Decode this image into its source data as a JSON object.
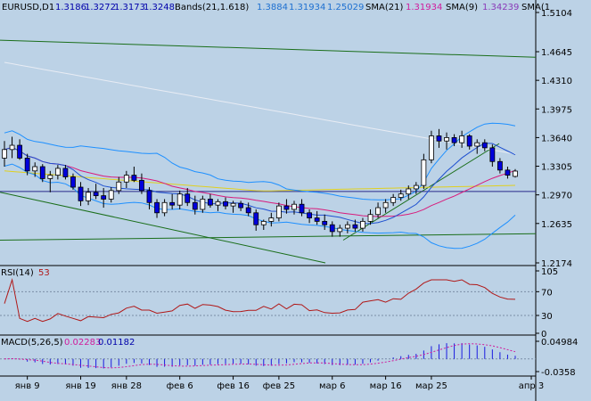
{
  "header": {
    "symbol": "EURUSD,D1",
    "ohlc": [
      "1.3186",
      "1.3272",
      "1.3173",
      "1.3248"
    ],
    "bands_label": "Bands(21,1.618)",
    "bands_values": [
      "1.3884",
      "1.31934",
      "1.25029"
    ],
    "sma21_label": "SMA(21)",
    "sma21_value": "1.31934",
    "sma9_label": "SMA(9)",
    "sma9_value": "1.34239",
    "sma_extra_label": "SMA(1"
  },
  "colors": {
    "background": "#bcd2e6",
    "candle_up": "#ffffff",
    "candle_down": "#0000dd",
    "bands": "#1e90ff",
    "sma21": "#d81b7c",
    "sma9": "#1e50d0",
    "slow_ma": "#e8ecf4",
    "ma_yellow": "#e0d020",
    "trendline": "#1a6e1a",
    "hline": "#2a2a8a",
    "rsi_line": "#b01818",
    "macd_hist": "#1a1ae0",
    "macd_signal": "#d01b9c",
    "ohlc_text": "#0000aa",
    "bands_text": "#1e70d0",
    "sma21_text": "#d01b9c",
    "sma9_text": "#8a3ab8"
  },
  "rsi": {
    "label": "RSI(14)",
    "value": "53"
  },
  "macd": {
    "label": "MACD(5,26,5)",
    "value1": "0.02283",
    "value2": "0.01182"
  },
  "chart_data": {
    "type": "candlestick",
    "symbol": "EURUSD",
    "timeframe": "D1",
    "price_ticks": [
      "1.5104",
      "1.4645",
      "1.4310",
      "1.3975",
      "1.3640",
      "1.3305",
      "1.2970",
      "1.2635",
      "1.2174"
    ],
    "ylim": [
      1.2174,
      1.5104
    ],
    "date_labels": [
      "янв 9",
      "янв 19",
      "янв 28",
      "фев 6",
      "фев 16",
      "фев 25",
      "мар 6",
      "мар 16",
      "мар 25",
      "апр 3"
    ],
    "candles": [
      {
        "o": 1.34,
        "h": 1.36,
        "l": 1.33,
        "c": 1.35
      },
      {
        "o": 1.35,
        "h": 1.365,
        "l": 1.34,
        "c": 1.355
      },
      {
        "o": 1.355,
        "h": 1.362,
        "l": 1.338,
        "c": 1.34
      },
      {
        "o": 1.34,
        "h": 1.345,
        "l": 1.32,
        "c": 1.325
      },
      {
        "o": 1.325,
        "h": 1.335,
        "l": 1.318,
        "c": 1.33
      },
      {
        "o": 1.33,
        "h": 1.333,
        "l": 1.312,
        "c": 1.316
      },
      {
        "o": 1.316,
        "h": 1.325,
        "l": 1.3,
        "c": 1.32
      },
      {
        "o": 1.32,
        "h": 1.332,
        "l": 1.315,
        "c": 1.328
      },
      {
        "o": 1.328,
        "h": 1.332,
        "l": 1.315,
        "c": 1.318
      },
      {
        "o": 1.318,
        "h": 1.322,
        "l": 1.303,
        "c": 1.306
      },
      {
        "o": 1.306,
        "h": 1.312,
        "l": 1.284,
        "c": 1.29
      },
      {
        "o": 1.29,
        "h": 1.305,
        "l": 1.285,
        "c": 1.3
      },
      {
        "o": 1.3,
        "h": 1.31,
        "l": 1.292,
        "c": 1.296
      },
      {
        "o": 1.296,
        "h": 1.305,
        "l": 1.282,
        "c": 1.292
      },
      {
        "o": 1.292,
        "h": 1.306,
        "l": 1.288,
        "c": 1.302
      },
      {
        "o": 1.302,
        "h": 1.318,
        "l": 1.298,
        "c": 1.312
      },
      {
        "o": 1.312,
        "h": 1.325,
        "l": 1.305,
        "c": 1.32
      },
      {
        "o": 1.32,
        "h": 1.33,
        "l": 1.312,
        "c": 1.314
      },
      {
        "o": 1.314,
        "h": 1.322,
        "l": 1.298,
        "c": 1.302
      },
      {
        "o": 1.302,
        "h": 1.306,
        "l": 1.28,
        "c": 1.288
      },
      {
        "o": 1.288,
        "h": 1.292,
        "l": 1.27,
        "c": 1.276
      },
      {
        "o": 1.276,
        "h": 1.292,
        "l": 1.272,
        "c": 1.288
      },
      {
        "o": 1.288,
        "h": 1.298,
        "l": 1.28,
        "c": 1.285
      },
      {
        "o": 1.285,
        "h": 1.302,
        "l": 1.28,
        "c": 1.298
      },
      {
        "o": 1.298,
        "h": 1.305,
        "l": 1.284,
        "c": 1.288
      },
      {
        "o": 1.288,
        "h": 1.296,
        "l": 1.274,
        "c": 1.28
      },
      {
        "o": 1.28,
        "h": 1.296,
        "l": 1.276,
        "c": 1.292
      },
      {
        "o": 1.292,
        "h": 1.298,
        "l": 1.282,
        "c": 1.285
      },
      {
        "o": 1.285,
        "h": 1.292,
        "l": 1.278,
        "c": 1.289
      },
      {
        "o": 1.289,
        "h": 1.294,
        "l": 1.28,
        "c": 1.284
      },
      {
        "o": 1.284,
        "h": 1.29,
        "l": 1.276,
        "c": 1.287
      },
      {
        "o": 1.287,
        "h": 1.29,
        "l": 1.278,
        "c": 1.282
      },
      {
        "o": 1.282,
        "h": 1.288,
        "l": 1.272,
        "c": 1.276
      },
      {
        "o": 1.276,
        "h": 1.28,
        "l": 1.255,
        "c": 1.262
      },
      {
        "o": 1.262,
        "h": 1.268,
        "l": 1.256,
        "c": 1.266
      },
      {
        "o": 1.266,
        "h": 1.276,
        "l": 1.26,
        "c": 1.27
      },
      {
        "o": 1.27,
        "h": 1.288,
        "l": 1.266,
        "c": 1.284
      },
      {
        "o": 1.284,
        "h": 1.292,
        "l": 1.275,
        "c": 1.28
      },
      {
        "o": 1.28,
        "h": 1.29,
        "l": 1.274,
        "c": 1.286
      },
      {
        "o": 1.286,
        "h": 1.292,
        "l": 1.272,
        "c": 1.276
      },
      {
        "o": 1.276,
        "h": 1.28,
        "l": 1.264,
        "c": 1.27
      },
      {
        "o": 1.27,
        "h": 1.278,
        "l": 1.262,
        "c": 1.266
      },
      {
        "o": 1.266,
        "h": 1.274,
        "l": 1.256,
        "c": 1.262
      },
      {
        "o": 1.262,
        "h": 1.266,
        "l": 1.248,
        "c": 1.254
      },
      {
        "o": 1.254,
        "h": 1.262,
        "l": 1.248,
        "c": 1.258
      },
      {
        "o": 1.258,
        "h": 1.266,
        "l": 1.252,
        "c": 1.262
      },
      {
        "o": 1.262,
        "h": 1.268,
        "l": 1.254,
        "c": 1.258
      },
      {
        "o": 1.258,
        "h": 1.27,
        "l": 1.254,
        "c": 1.266
      },
      {
        "o": 1.266,
        "h": 1.28,
        "l": 1.262,
        "c": 1.274
      },
      {
        "o": 1.274,
        "h": 1.288,
        "l": 1.27,
        "c": 1.282
      },
      {
        "o": 1.282,
        "h": 1.292,
        "l": 1.276,
        "c": 1.288
      },
      {
        "o": 1.288,
        "h": 1.298,
        "l": 1.284,
        "c": 1.294
      },
      {
        "o": 1.294,
        "h": 1.303,
        "l": 1.29,
        "c": 1.298
      },
      {
        "o": 1.298,
        "h": 1.308,
        "l": 1.292,
        "c": 1.304
      },
      {
        "o": 1.304,
        "h": 1.312,
        "l": 1.298,
        "c": 1.308
      },
      {
        "o": 1.308,
        "h": 1.345,
        "l": 1.304,
        "c": 1.338
      },
      {
        "o": 1.338,
        "h": 1.372,
        "l": 1.334,
        "c": 1.366
      },
      {
        "o": 1.366,
        "h": 1.374,
        "l": 1.352,
        "c": 1.36
      },
      {
        "o": 1.36,
        "h": 1.37,
        "l": 1.35,
        "c": 1.364
      },
      {
        "o": 1.364,
        "h": 1.368,
        "l": 1.354,
        "c": 1.358
      },
      {
        "o": 1.358,
        "h": 1.372,
        "l": 1.352,
        "c": 1.366
      },
      {
        "o": 1.366,
        "h": 1.368,
        "l": 1.35,
        "c": 1.354
      },
      {
        "o": 1.354,
        "h": 1.362,
        "l": 1.345,
        "c": 1.358
      },
      {
        "o": 1.358,
        "h": 1.362,
        "l": 1.348,
        "c": 1.352
      },
      {
        "o": 1.352,
        "h": 1.356,
        "l": 1.33,
        "c": 1.336
      },
      {
        "o": 1.336,
        "h": 1.34,
        "l": 1.322,
        "c": 1.326
      },
      {
        "o": 1.326,
        "h": 1.33,
        "l": 1.316,
        "c": 1.32
      },
      {
        "o": 1.3186,
        "h": 1.3272,
        "l": 1.3173,
        "c": 1.3248
      }
    ]
  }
}
